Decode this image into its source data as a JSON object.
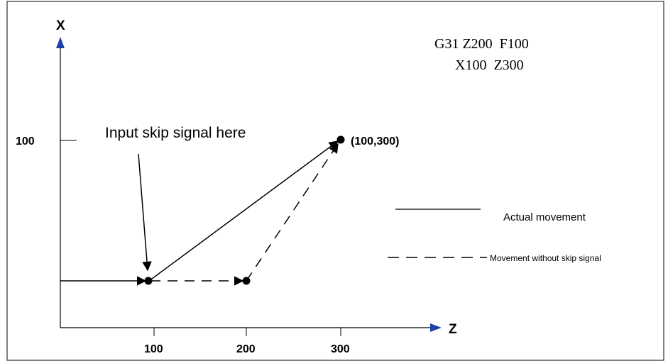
{
  "axes": {
    "x_axis_label": "X",
    "z_axis_label": "Z",
    "x_tick_label": "100",
    "z_tick_labels": [
      "100",
      "200",
      "300"
    ],
    "axis_color": "#1f3fa8"
  },
  "program": {
    "line1": "G31 Z200  F100",
    "line2": "X100  Z300"
  },
  "annotation": {
    "skip_signal": "Input skip signal here",
    "endpoint": "(100,300)"
  },
  "legend": {
    "actual_label": "Actual movement",
    "without_skip_label": "Movement without skip signal"
  }
}
